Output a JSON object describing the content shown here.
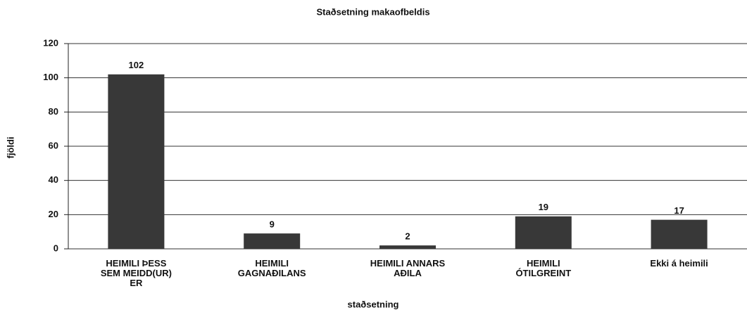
{
  "chart_data": {
    "type": "bar",
    "title": "Staðsetning makaofbeldis",
    "x_label": "staðsetning",
    "y_label": "fjöldi",
    "categories": [
      "HEIMILI ÞESS\nSEM MEIDD(UR)\nER",
      "HEIMILI\nGAGNAÐILANS",
      "HEIMILI ANNARS\nAÐILA",
      "HEIMILI\nÓTILGREINT",
      "Ekki á heimili"
    ],
    "values": [
      102,
      9,
      2,
      19,
      17
    ],
    "color": "#383838",
    "ylim": [
      0,
      120
    ],
    "yticks": [
      0,
      20,
      40,
      60,
      80,
      100,
      120
    ],
    "grid": true
  }
}
